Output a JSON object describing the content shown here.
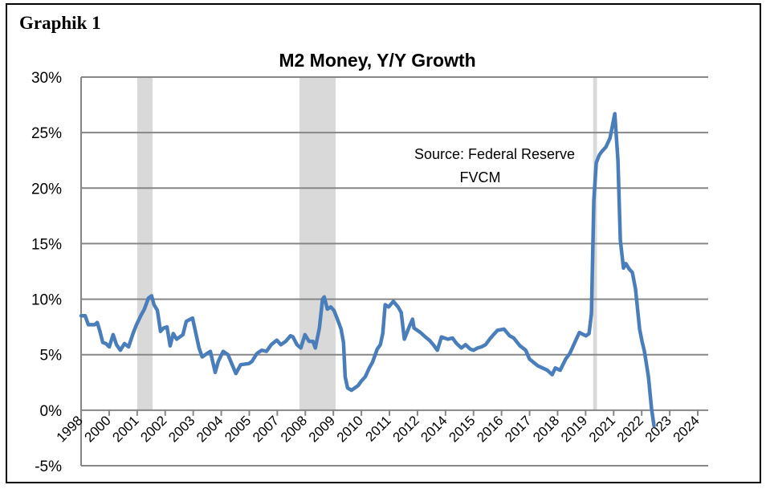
{
  "heading": "Graphik 1",
  "chart_data": {
    "type": "line",
    "title": "M2 Money, Y/Y Growth",
    "xlabel": "",
    "ylabel": "",
    "ylim": [
      -5,
      30
    ],
    "xlim": [
      1998.85,
      2024.9
    ],
    "yticks": [
      -5,
      0,
      5,
      10,
      15,
      20,
      25,
      30
    ],
    "ytick_labels": [
      "-5%",
      "0%",
      "5%",
      "10%",
      "15%",
      "20%",
      "25%",
      "30%"
    ],
    "xtick_labels": [
      "1998",
      "2000",
      "2001",
      "2002",
      "2003",
      "2004",
      "2005",
      "2007",
      "2008",
      "2009",
      "2010",
      "2011",
      "2012",
      "2014",
      "2015",
      "2016",
      "2017",
      "2018",
      "2019",
      "2021",
      "2022",
      "2023",
      "2024"
    ],
    "grid": true,
    "annotation": [
      "Source: Federal Reserve",
      "FVCM"
    ],
    "recessions": [
      [
        2001.18,
        2001.82
      ],
      [
        2007.92,
        2009.42
      ],
      [
        2020.12,
        2020.28
      ]
    ],
    "series": [
      {
        "name": "M2 Y/Y growth (%)",
        "color": "#4a7ebb",
        "points": [
          [
            1998.85,
            8.5
          ],
          [
            1999.02,
            8.5
          ],
          [
            1999.15,
            7.7
          ],
          [
            1999.42,
            7.7
          ],
          [
            1999.52,
            7.9
          ],
          [
            1999.62,
            7.2
          ],
          [
            1999.75,
            6.1
          ],
          [
            1999.88,
            6.0
          ],
          [
            2000.02,
            5.7
          ],
          [
            2000.18,
            6.8
          ],
          [
            2000.32,
            5.9
          ],
          [
            2000.48,
            5.4
          ],
          [
            2000.65,
            6.0
          ],
          [
            2000.82,
            5.7
          ],
          [
            2001.02,
            7.0
          ],
          [
            2001.15,
            7.7
          ],
          [
            2001.35,
            8.6
          ],
          [
            2001.48,
            9.1
          ],
          [
            2001.65,
            10.1
          ],
          [
            2001.78,
            10.3
          ],
          [
            2001.88,
            9.5
          ],
          [
            2002.02,
            9.0
          ],
          [
            2002.15,
            7.1
          ],
          [
            2002.28,
            7.4
          ],
          [
            2002.42,
            7.5
          ],
          [
            2002.55,
            5.8
          ],
          [
            2002.68,
            6.9
          ],
          [
            2002.82,
            6.4
          ],
          [
            2003.08,
            6.8
          ],
          [
            2003.22,
            8.0
          ],
          [
            2003.48,
            8.3
          ],
          [
            2003.75,
            5.6
          ],
          [
            2003.88,
            4.8
          ],
          [
            2004.08,
            5.1
          ],
          [
            2004.22,
            5.3
          ],
          [
            2004.42,
            3.4
          ],
          [
            2004.55,
            4.4
          ],
          [
            2004.75,
            5.3
          ],
          [
            2004.95,
            5.0
          ],
          [
            2005.28,
            3.3
          ],
          [
            2005.48,
            4.1
          ],
          [
            2005.82,
            4.2
          ],
          [
            2005.95,
            4.4
          ],
          [
            2006.15,
            5.1
          ],
          [
            2006.35,
            5.4
          ],
          [
            2006.55,
            5.3
          ],
          [
            2006.75,
            5.9
          ],
          [
            2006.98,
            6.3
          ],
          [
            2007.15,
            5.9
          ],
          [
            2007.35,
            6.2
          ],
          [
            2007.55,
            6.7
          ],
          [
            2007.65,
            6.6
          ],
          [
            2007.82,
            5.9
          ],
          [
            2007.98,
            5.6
          ],
          [
            2008.15,
            6.8
          ],
          [
            2008.32,
            6.2
          ],
          [
            2008.48,
            6.2
          ],
          [
            2008.58,
            5.6
          ],
          [
            2008.75,
            7.4
          ],
          [
            2008.88,
            10.0
          ],
          [
            2008.95,
            10.2
          ],
          [
            2009.08,
            9.1
          ],
          [
            2009.22,
            9.3
          ],
          [
            2009.35,
            9.0
          ],
          [
            2009.48,
            8.3
          ],
          [
            2009.65,
            7.3
          ],
          [
            2009.75,
            6.1
          ],
          [
            2009.82,
            3.0
          ],
          [
            2009.92,
            2.0
          ],
          [
            2010.08,
            1.8
          ],
          [
            2010.35,
            2.2
          ],
          [
            2010.48,
            2.6
          ],
          [
            2010.65,
            3.0
          ],
          [
            2010.82,
            3.8
          ],
          [
            2010.95,
            4.3
          ],
          [
            2011.15,
            5.5
          ],
          [
            2011.28,
            5.9
          ],
          [
            2011.38,
            6.9
          ],
          [
            2011.48,
            9.5
          ],
          [
            2011.62,
            9.3
          ],
          [
            2011.82,
            9.8
          ],
          [
            2012.02,
            9.3
          ],
          [
            2012.15,
            8.8
          ],
          [
            2012.28,
            6.4
          ],
          [
            2012.48,
            7.5
          ],
          [
            2012.62,
            8.2
          ],
          [
            2012.68,
            7.4
          ],
          [
            2012.95,
            7.0
          ],
          [
            2013.15,
            6.6
          ],
          [
            2013.32,
            6.3
          ],
          [
            2013.48,
            5.9
          ],
          [
            2013.58,
            5.6
          ],
          [
            2013.65,
            5.4
          ],
          [
            2013.82,
            6.6
          ],
          [
            2014.08,
            6.4
          ],
          [
            2014.28,
            6.5
          ],
          [
            2014.45,
            6.0
          ],
          [
            2014.65,
            5.6
          ],
          [
            2014.82,
            5.9
          ],
          [
            2015.02,
            5.5
          ],
          [
            2015.15,
            5.4
          ],
          [
            2015.32,
            5.6
          ],
          [
            2015.48,
            5.7
          ],
          [
            2015.65,
            5.9
          ],
          [
            2015.82,
            6.4
          ],
          [
            2015.98,
            6.8
          ],
          [
            2016.15,
            7.2
          ],
          [
            2016.42,
            7.3
          ],
          [
            2016.65,
            6.7
          ],
          [
            2016.82,
            6.5
          ],
          [
            2017.08,
            5.8
          ],
          [
            2017.32,
            5.4
          ],
          [
            2017.48,
            4.6
          ],
          [
            2017.82,
            4.0
          ],
          [
            2018.02,
            3.8
          ],
          [
            2018.22,
            3.6
          ],
          [
            2018.42,
            3.2
          ],
          [
            2018.55,
            3.8
          ],
          [
            2018.75,
            3.6
          ],
          [
            2018.98,
            4.6
          ],
          [
            2019.15,
            5.1
          ],
          [
            2019.42,
            6.4
          ],
          [
            2019.55,
            7.0
          ],
          [
            2019.82,
            6.7
          ],
          [
            2019.95,
            6.9
          ],
          [
            2020.05,
            8.7
          ],
          [
            2020.15,
            18.9
          ],
          [
            2020.25,
            22.3
          ],
          [
            2020.38,
            23.0
          ],
          [
            2020.48,
            23.3
          ],
          [
            2020.65,
            23.7
          ],
          [
            2020.82,
            24.5
          ],
          [
            2021.02,
            26.7
          ],
          [
            2021.15,
            22.5
          ],
          [
            2021.25,
            15.3
          ],
          [
            2021.38,
            12.8
          ],
          [
            2021.48,
            13.2
          ],
          [
            2021.62,
            12.7
          ],
          [
            2021.75,
            12.4
          ],
          [
            2021.88,
            10.9
          ],
          [
            2022.05,
            7.3
          ],
          [
            2022.15,
            6.2
          ],
          [
            2022.25,
            5.3
          ],
          [
            2022.42,
            3.0
          ],
          [
            2022.55,
            0.1
          ],
          [
            2022.65,
            -1.4
          ]
        ]
      }
    ]
  }
}
